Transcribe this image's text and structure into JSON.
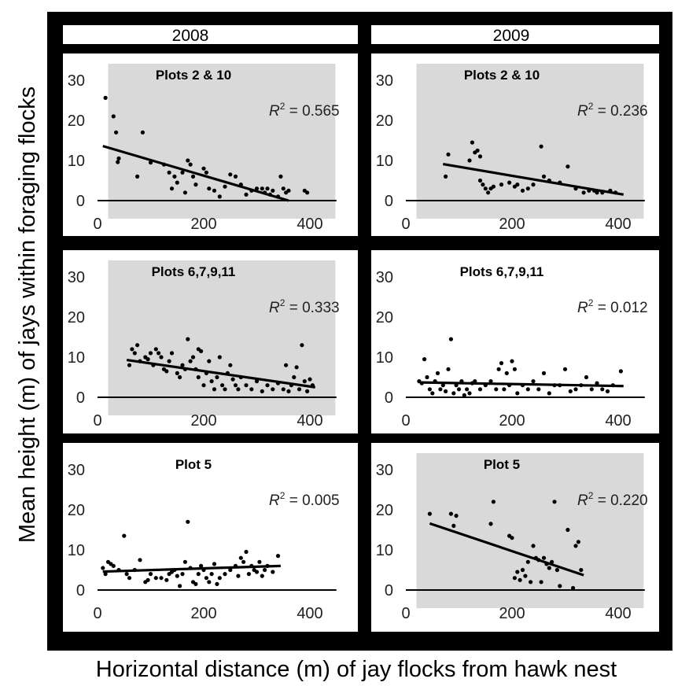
{
  "figure": {
    "ylabel": "Mean height (m) of jays within foraging flocks",
    "xlabel": "Horizontal distance (m) of jay flocks from hawk nest"
  },
  "columns": [
    "2008",
    "2009"
  ],
  "colors": {
    "frame": "#000000",
    "shaded_bg": "#d9d9d9",
    "plain_bg": "#ffffff",
    "points": "#000000"
  },
  "chart_data": [
    {
      "type": "scatter",
      "year": "2008",
      "title": "Plots 2 & 10",
      "r2_label": "R",
      "r2_value": " = 0.565",
      "shaded": true,
      "xlim": [
        0,
        450
      ],
      "ylim": [
        0,
        30
      ],
      "xticks": [
        0,
        200,
        400
      ],
      "yticks": [
        0,
        10,
        20,
        30
      ],
      "trend": [
        [
          10,
          13.6
        ],
        [
          360,
          0
        ]
      ],
      "points": [
        [
          15,
          25.6
        ],
        [
          30,
          21
        ],
        [
          35,
          17
        ],
        [
          40,
          10.5
        ],
        [
          38,
          9.6
        ],
        [
          85,
          17
        ],
        [
          100,
          9.5
        ],
        [
          75,
          6
        ],
        [
          125,
          9
        ],
        [
          135,
          7
        ],
        [
          145,
          6
        ],
        [
          150,
          4.5
        ],
        [
          140,
          3
        ],
        [
          160,
          7
        ],
        [
          170,
          10
        ],
        [
          175,
          9
        ],
        [
          180,
          6
        ],
        [
          165,
          2
        ],
        [
          185,
          4
        ],
        [
          200,
          8
        ],
        [
          205,
          7
        ],
        [
          210,
          3
        ],
        [
          220,
          2.5
        ],
        [
          230,
          1
        ],
        [
          240,
          3.5
        ],
        [
          250,
          6.5
        ],
        [
          260,
          6
        ],
        [
          270,
          4
        ],
        [
          280,
          1.5
        ],
        [
          290,
          2.5
        ],
        [
          300,
          3
        ],
        [
          310,
          3
        ],
        [
          315,
          2
        ],
        [
          320,
          3
        ],
        [
          325,
          1.5
        ],
        [
          330,
          2.5
        ],
        [
          340,
          1
        ],
        [
          345,
          6
        ],
        [
          350,
          3
        ],
        [
          355,
          2
        ],
        [
          360,
          2.5
        ],
        [
          390,
          2.5
        ],
        [
          395,
          2
        ]
      ]
    },
    {
      "type": "scatter",
      "year": "2009",
      "title": "Plots 2 & 10",
      "r2_label": "R",
      "r2_value": " = 0.236",
      "shaded": true,
      "xlim": [
        0,
        450
      ],
      "ylim": [
        0,
        30
      ],
      "xticks": [
        0,
        200,
        400
      ],
      "yticks": [
        0,
        10,
        20,
        30
      ],
      "trend": [
        [
          70,
          9.1
        ],
        [
          410,
          1.5
        ]
      ],
      "points": [
        [
          75,
          6
        ],
        [
          80,
          11.5
        ],
        [
          120,
          10
        ],
        [
          125,
          14.5
        ],
        [
          130,
          12
        ],
        [
          135,
          12.5
        ],
        [
          140,
          11
        ],
        [
          140,
          5
        ],
        [
          145,
          4
        ],
        [
          150,
          3
        ],
        [
          155,
          2
        ],
        [
          160,
          3
        ],
        [
          165,
          3.5
        ],
        [
          180,
          4
        ],
        [
          195,
          4.5
        ],
        [
          205,
          3.5
        ],
        [
          210,
          4
        ],
        [
          220,
          2.5
        ],
        [
          230,
          3
        ],
        [
          240,
          4
        ],
        [
          255,
          13.5
        ],
        [
          260,
          6
        ],
        [
          270,
          5
        ],
        [
          290,
          4.5
        ],
        [
          305,
          8.5
        ],
        [
          320,
          3
        ],
        [
          335,
          2
        ],
        [
          345,
          2.5
        ],
        [
          355,
          2.5
        ],
        [
          360,
          2
        ],
        [
          370,
          2
        ],
        [
          385,
          2.5
        ],
        [
          395,
          2
        ]
      ]
    },
    {
      "type": "scatter",
      "year": "2008",
      "title": "Plots 6,7,9,11",
      "r2_label": "R",
      "r2_value": " = 0.333",
      "shaded": true,
      "xlim": [
        0,
        450
      ],
      "ylim": [
        0,
        30
      ],
      "xticks": [
        0,
        200,
        400
      ],
      "yticks": [
        0,
        10,
        20,
        30
      ],
      "trend": [
        [
          55,
          9.3
        ],
        [
          410,
          2.5
        ]
      ],
      "points": [
        [
          60,
          8
        ],
        [
          65,
          12
        ],
        [
          70,
          11
        ],
        [
          75,
          13
        ],
        [
          80,
          9
        ],
        [
          90,
          10
        ],
        [
          95,
          9.5
        ],
        [
          100,
          11
        ],
        [
          105,
          8
        ],
        [
          110,
          12
        ],
        [
          115,
          11
        ],
        [
          120,
          10
        ],
        [
          125,
          7
        ],
        [
          130,
          6.5
        ],
        [
          135,
          9
        ],
        [
          140,
          11
        ],
        [
          150,
          6
        ],
        [
          155,
          5
        ],
        [
          160,
          8
        ],
        [
          165,
          7
        ],
        [
          170,
          14.5
        ],
        [
          175,
          9
        ],
        [
          180,
          10
        ],
        [
          185,
          7
        ],
        [
          190,
          12
        ],
        [
          190,
          5
        ],
        [
          195,
          11.5
        ],
        [
          200,
          3
        ],
        [
          205,
          6
        ],
        [
          210,
          9
        ],
        [
          215,
          4
        ],
        [
          220,
          2
        ],
        [
          225,
          5
        ],
        [
          230,
          10
        ],
        [
          235,
          3
        ],
        [
          240,
          2
        ],
        [
          245,
          6
        ],
        [
          250,
          8
        ],
        [
          255,
          4.5
        ],
        [
          260,
          3
        ],
        [
          265,
          2
        ],
        [
          270,
          5
        ],
        [
          280,
          3
        ],
        [
          290,
          2
        ],
        [
          300,
          4
        ],
        [
          310,
          1.5
        ],
        [
          320,
          3
        ],
        [
          330,
          2
        ],
        [
          340,
          3.5
        ],
        [
          350,
          2
        ],
        [
          355,
          8
        ],
        [
          360,
          1.5
        ],
        [
          365,
          3
        ],
        [
          370,
          5
        ],
        [
          375,
          7.5
        ],
        [
          380,
          2
        ],
        [
          385,
          13
        ],
        [
          390,
          4
        ],
        [
          395,
          1.5
        ],
        [
          400,
          4.5
        ],
        [
          405,
          3
        ]
      ]
    },
    {
      "type": "scatter",
      "year": "2009",
      "title": "Plots 6,7,9,11",
      "r2_label": "R",
      "r2_value": " = 0.012",
      "shaded": false,
      "xlim": [
        0,
        450
      ],
      "ylim": [
        0,
        30
      ],
      "xticks": [
        0,
        200,
        400
      ],
      "yticks": [
        0,
        10,
        20,
        30
      ],
      "trend": [
        [
          30,
          3.7
        ],
        [
          410,
          2.8
        ]
      ],
      "points": [
        [
          25,
          4
        ],
        [
          30,
          3.5
        ],
        [
          35,
          9.5
        ],
        [
          40,
          5
        ],
        [
          45,
          2
        ],
        [
          50,
          1
        ],
        [
          55,
          4
        ],
        [
          60,
          6
        ],
        [
          65,
          2
        ],
        [
          70,
          3
        ],
        [
          75,
          1.5
        ],
        [
          80,
          7
        ],
        [
          85,
          14.5
        ],
        [
          90,
          1
        ],
        [
          95,
          3
        ],
        [
          100,
          2
        ],
        [
          105,
          4
        ],
        [
          110,
          0.5
        ],
        [
          115,
          2
        ],
        [
          120,
          1
        ],
        [
          125,
          3.5
        ],
        [
          130,
          4
        ],
        [
          140,
          2
        ],
        [
          150,
          3
        ],
        [
          160,
          4
        ],
        [
          170,
          2
        ],
        [
          175,
          7
        ],
        [
          180,
          8.5
        ],
        [
          185,
          2
        ],
        [
          190,
          6
        ],
        [
          195,
          3
        ],
        [
          200,
          9
        ],
        [
          205,
          7
        ],
        [
          210,
          1
        ],
        [
          220,
          3
        ],
        [
          230,
          2
        ],
        [
          240,
          4
        ],
        [
          250,
          2
        ],
        [
          260,
          6
        ],
        [
          270,
          1
        ],
        [
          280,
          3
        ],
        [
          290,
          3
        ],
        [
          300,
          7
        ],
        [
          310,
          1.5
        ],
        [
          320,
          2
        ],
        [
          330,
          3
        ],
        [
          340,
          5
        ],
        [
          350,
          2
        ],
        [
          360,
          3.5
        ],
        [
          370,
          2
        ],
        [
          380,
          1.5
        ],
        [
          390,
          3
        ],
        [
          405,
          6.5
        ]
      ]
    },
    {
      "type": "scatter",
      "year": "2008",
      "title": "Plot 5",
      "r2_label": "R",
      "r2_value": " = 0.005",
      "shaded": false,
      "xlim": [
        0,
        450
      ],
      "ylim": [
        0,
        30
      ],
      "xticks": [
        0,
        200,
        400
      ],
      "yticks": [
        0,
        10,
        20,
        30
      ],
      "trend": [
        [
          10,
          4.6
        ],
        [
          345,
          6
        ]
      ],
      "points": [
        [
          10,
          5.5
        ],
        [
          15,
          4
        ],
        [
          20,
          7
        ],
        [
          25,
          6.5
        ],
        [
          30,
          6
        ],
        [
          40,
          5
        ],
        [
          50,
          13.5
        ],
        [
          55,
          4
        ],
        [
          60,
          3
        ],
        [
          70,
          5
        ],
        [
          80,
          7.5
        ],
        [
          90,
          2
        ],
        [
          95,
          2.5
        ],
        [
          100,
          4
        ],
        [
          110,
          3
        ],
        [
          120,
          3
        ],
        [
          130,
          2.5
        ],
        [
          135,
          4
        ],
        [
          140,
          4.5
        ],
        [
          145,
          5
        ],
        [
          150,
          3.5
        ],
        [
          155,
          1
        ],
        [
          160,
          4
        ],
        [
          165,
          7
        ],
        [
          170,
          17
        ],
        [
          175,
          5.5
        ],
        [
          180,
          2
        ],
        [
          185,
          1.5
        ],
        [
          190,
          4
        ],
        [
          195,
          6
        ],
        [
          200,
          5
        ],
        [
          205,
          3
        ],
        [
          210,
          2
        ],
        [
          215,
          4
        ],
        [
          220,
          6.5
        ],
        [
          225,
          1.5
        ],
        [
          230,
          3
        ],
        [
          240,
          4
        ],
        [
          250,
          5
        ],
        [
          260,
          6
        ],
        [
          265,
          3.5
        ],
        [
          270,
          8
        ],
        [
          275,
          7
        ],
        [
          280,
          9.5
        ],
        [
          285,
          4
        ],
        [
          290,
          6
        ],
        [
          295,
          5
        ],
        [
          300,
          4.5
        ],
        [
          305,
          7
        ],
        [
          310,
          3.5
        ],
        [
          315,
          5
        ],
        [
          320,
          6
        ],
        [
          330,
          4.5
        ],
        [
          340,
          8.5
        ]
      ]
    },
    {
      "type": "scatter",
      "year": "2009",
      "title": "Plot 5",
      "r2_label": "R",
      "r2_value": " = 0.220",
      "shaded": true,
      "xlim": [
        0,
        450
      ],
      "ylim": [
        0,
        30
      ],
      "xticks": [
        0,
        200,
        400
      ],
      "yticks": [
        0,
        10,
        20,
        30
      ],
      "trend": [
        [
          45,
          16.6
        ],
        [
          335,
          3.7
        ]
      ],
      "points": [
        [
          45,
          19
        ],
        [
          85,
          19
        ],
        [
          90,
          16
        ],
        [
          95,
          18.5
        ],
        [
          160,
          16.5
        ],
        [
          165,
          22
        ],
        [
          195,
          13.5
        ],
        [
          200,
          13
        ],
        [
          205,
          3
        ],
        [
          210,
          4.5
        ],
        [
          215,
          2.5
        ],
        [
          220,
          5
        ],
        [
          225,
          3.5
        ],
        [
          230,
          7
        ],
        [
          235,
          2
        ],
        [
          240,
          11
        ],
        [
          245,
          8
        ],
        [
          250,
          7.5
        ],
        [
          255,
          2
        ],
        [
          260,
          8
        ],
        [
          265,
          6.5
        ],
        [
          270,
          5.5
        ],
        [
          275,
          7
        ],
        [
          280,
          22
        ],
        [
          285,
          5
        ],
        [
          290,
          1
        ],
        [
          305,
          15
        ],
        [
          315,
          0.5
        ],
        [
          320,
          11
        ],
        [
          325,
          12
        ],
        [
          330,
          5
        ]
      ]
    }
  ]
}
